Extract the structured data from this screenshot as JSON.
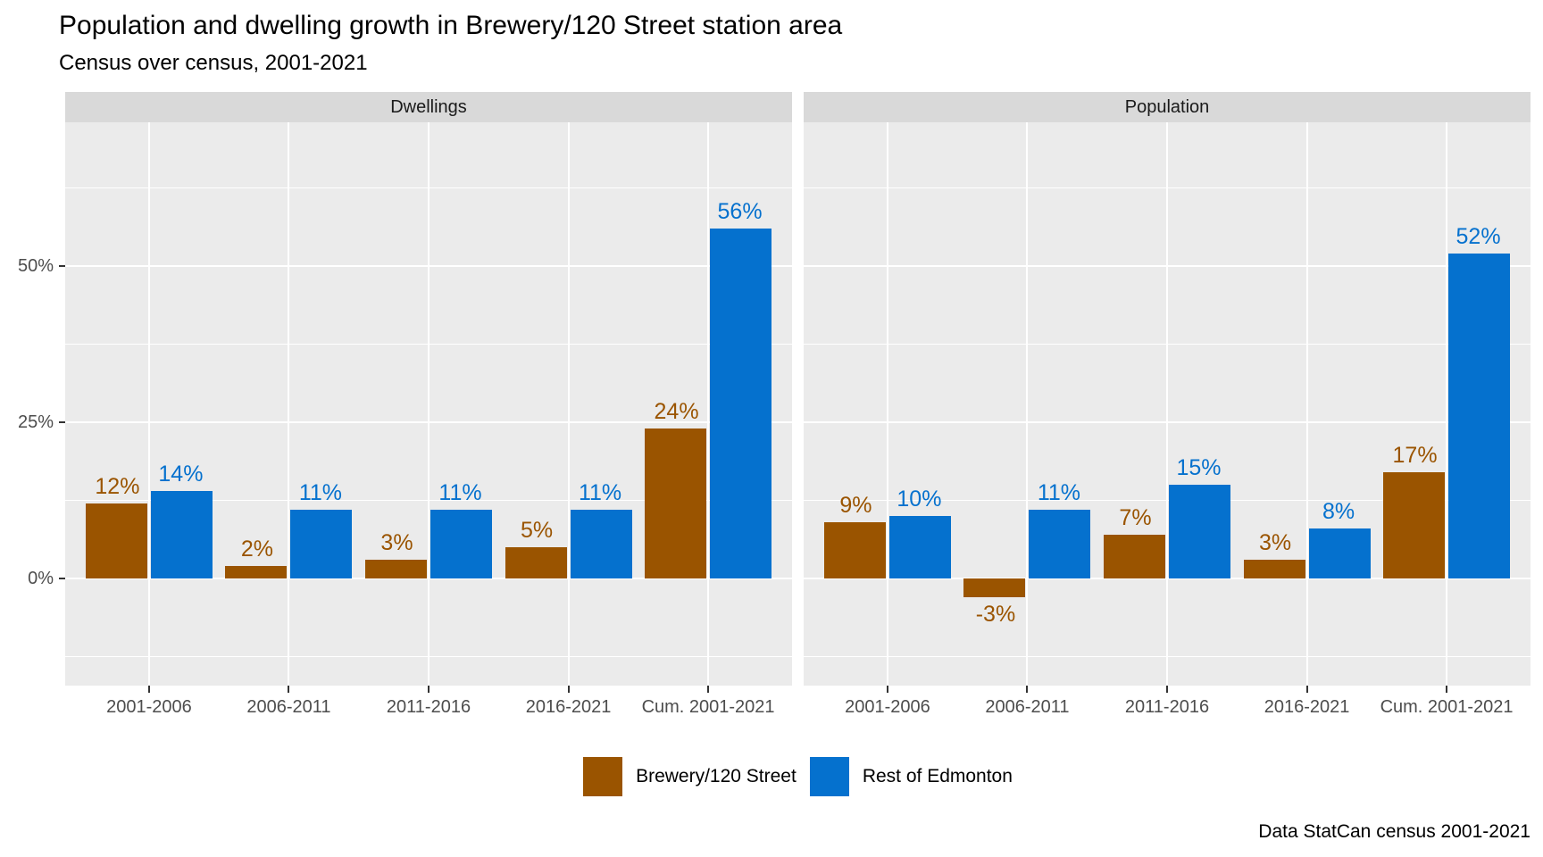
{
  "title": "Population and dwelling growth in Brewery/120 Street station area",
  "subtitle": "Census over census, 2001-2021",
  "caption": "Data StatCan census 2001-2021",
  "chart_data": {
    "type": "bar",
    "title": "Population and dwelling growth in Brewery/120 Street station area",
    "subtitle": "Census over census, 2001-2021",
    "caption": "Data StatCan census 2001-2021",
    "categories": [
      "2001-2006",
      "2006-2011",
      "2011-2016",
      "2016-2021",
      "Cum. 2001-2021"
    ],
    "facets": [
      {
        "label": "Dwellings",
        "series": [
          {
            "name": "Brewery/120 Street",
            "color": "#9a5400",
            "values": [
              12,
              2,
              3,
              5,
              24
            ]
          },
          {
            "name": "Rest of Edmonton",
            "color": "#0571ce",
            "values": [
              14,
              11,
              11,
              11,
              56
            ]
          }
        ]
      },
      {
        "label": "Population",
        "series": [
          {
            "name": "Brewery/120 Street",
            "color": "#9a5400",
            "values": [
              9,
              -3,
              7,
              3,
              17
            ]
          },
          {
            "name": "Rest of Edmonton",
            "color": "#0571ce",
            "values": [
              10,
              11,
              15,
              8,
              52
            ]
          }
        ]
      }
    ],
    "value_label_format": "percent",
    "y_axis": {
      "ticks": [
        {
          "label": "0%",
          "value": 0
        },
        {
          "label": "25%",
          "value": 25
        },
        {
          "label": "50%",
          "value": 50
        }
      ],
      "minor_gridlines": [
        -12.5,
        12.5,
        37.5,
        62.5
      ],
      "ylim": [
        -17.2,
        73
      ]
    },
    "legend": {
      "position": "bottom",
      "entries": [
        {
          "label": "Brewery/120 Street",
          "color": "#9a5400"
        },
        {
          "label": "Rest of Edmonton",
          "color": "#0571ce"
        }
      ]
    },
    "style": {
      "panel_bg": "#ebebeb",
      "strip_bg": "#d9d9d9",
      "gridline_color": "#ffffff",
      "axis_text_color": "#4d4d4d",
      "tick_color": "#333333"
    }
  }
}
